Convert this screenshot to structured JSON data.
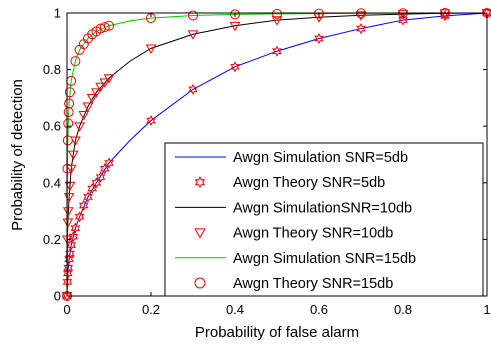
{
  "chart_data": {
    "type": "line",
    "title": "",
    "xlabel": "Probability of false alarm",
    "ylabel": "Probability of detection",
    "xlim": [
      0,
      1
    ],
    "ylim": [
      0,
      1
    ],
    "xticks": [
      0,
      0.2,
      0.4,
      0.6,
      0.8,
      1
    ],
    "yticks": [
      0,
      0.2,
      0.4,
      0.6,
      0.8,
      1
    ],
    "xtick_labels": [
      "0",
      "0.2",
      "0.4",
      "0.6",
      "0.8",
      "1"
    ],
    "ytick_labels": [
      "0",
      "0.2",
      "0.4",
      "0.6",
      "0.8",
      "1"
    ],
    "grid": false,
    "legend_position": "bottom-right",
    "series": [
      {
        "name": "Awgn Simulation SNR=5db",
        "style": "line",
        "color": "#0000ff",
        "x": [
          0,
          0.001,
          0.002,
          0.005,
          0.01,
          0.02,
          0.03,
          0.05,
          0.07,
          0.1,
          0.15,
          0.2,
          0.3,
          0.4,
          0.5,
          0.6,
          0.7,
          0.8,
          0.9,
          1.0
        ],
        "y": [
          0,
          0.05,
          0.08,
          0.13,
          0.18,
          0.24,
          0.28,
          0.35,
          0.4,
          0.47,
          0.55,
          0.62,
          0.73,
          0.81,
          0.865,
          0.91,
          0.945,
          0.975,
          0.99,
          1.0
        ]
      },
      {
        "name": "Awgn Theory SNR=5db",
        "style": "markers",
        "marker": "hexagram",
        "color": "#ff0000",
        "x": [
          0,
          0.001,
          0.002,
          0.003,
          0.005,
          0.007,
          0.01,
          0.015,
          0.02,
          0.03,
          0.04,
          0.05,
          0.06,
          0.07,
          0.08,
          0.09,
          0.1,
          0.2,
          0.3,
          0.4,
          0.5,
          0.6,
          0.7,
          0.8,
          0.9,
          1.0
        ],
        "y": [
          0,
          0.05,
          0.08,
          0.1,
          0.13,
          0.15,
          0.18,
          0.21,
          0.24,
          0.28,
          0.32,
          0.35,
          0.38,
          0.4,
          0.42,
          0.45,
          0.47,
          0.62,
          0.73,
          0.81,
          0.865,
          0.91,
          0.945,
          0.975,
          0.99,
          1.0
        ]
      },
      {
        "name": "Awgn SimulationSNR=10db",
        "style": "line",
        "color": "#000000",
        "x": [
          0,
          0.001,
          0.002,
          0.005,
          0.01,
          0.02,
          0.03,
          0.05,
          0.07,
          0.1,
          0.15,
          0.2,
          0.3,
          0.4,
          0.5,
          0.6,
          0.7,
          0.8,
          0.9,
          1.0
        ],
        "y": [
          0,
          0.2,
          0.26,
          0.35,
          0.45,
          0.55,
          0.6,
          0.67,
          0.72,
          0.77,
          0.83,
          0.875,
          0.925,
          0.955,
          0.975,
          0.985,
          0.992,
          0.996,
          0.999,
          1.0
        ]
      },
      {
        "name": "Awgn Theory SNR=10db",
        "style": "markers",
        "marker": "triangle-down",
        "color": "#ff0000",
        "x": [
          0,
          0.001,
          0.002,
          0.003,
          0.005,
          0.007,
          0.01,
          0.015,
          0.02,
          0.03,
          0.04,
          0.05,
          0.06,
          0.07,
          0.08,
          0.09,
          0.1,
          0.2,
          0.3,
          0.4,
          0.5,
          0.6,
          0.7,
          0.8,
          0.9,
          1.0
        ],
        "y": [
          0,
          0.2,
          0.26,
          0.3,
          0.35,
          0.39,
          0.45,
          0.5,
          0.55,
          0.6,
          0.64,
          0.67,
          0.7,
          0.72,
          0.74,
          0.755,
          0.77,
          0.875,
          0.925,
          0.955,
          0.975,
          0.985,
          0.992,
          0.996,
          0.999,
          1.0
        ]
      },
      {
        "name": "Awgn Simulation SNR=15db",
        "style": "line",
        "color": "#00cc00",
        "x": [
          0,
          0.001,
          0.002,
          0.003,
          0.005,
          0.01,
          0.02,
          0.03,
          0.05,
          0.07,
          0.1,
          0.15,
          0.2,
          0.3,
          0.4,
          0.5,
          0.6,
          0.7,
          0.8,
          0.9,
          1.0
        ],
        "y": [
          0,
          0.45,
          0.55,
          0.61,
          0.68,
          0.76,
          0.83,
          0.87,
          0.91,
          0.935,
          0.955,
          0.972,
          0.982,
          0.991,
          0.995,
          0.997,
          0.998,
          0.999,
          0.999,
          1.0,
          1.0
        ]
      },
      {
        "name": "Awgn Theory SNR=15db",
        "style": "markers",
        "marker": "circle",
        "color": "#ff0000",
        "x": [
          0,
          0.001,
          0.002,
          0.003,
          0.004,
          0.005,
          0.007,
          0.01,
          0.02,
          0.03,
          0.04,
          0.05,
          0.06,
          0.07,
          0.08,
          0.09,
          0.1,
          0.2,
          0.3,
          0.4,
          0.5,
          0.6,
          0.7,
          0.8,
          0.9,
          1.0
        ],
        "y": [
          0,
          0.45,
          0.55,
          0.61,
          0.65,
          0.68,
          0.72,
          0.76,
          0.83,
          0.87,
          0.89,
          0.91,
          0.925,
          0.935,
          0.945,
          0.95,
          0.955,
          0.982,
          0.991,
          0.995,
          0.997,
          0.998,
          0.999,
          0.999,
          1.0,
          1.0
        ]
      }
    ]
  }
}
